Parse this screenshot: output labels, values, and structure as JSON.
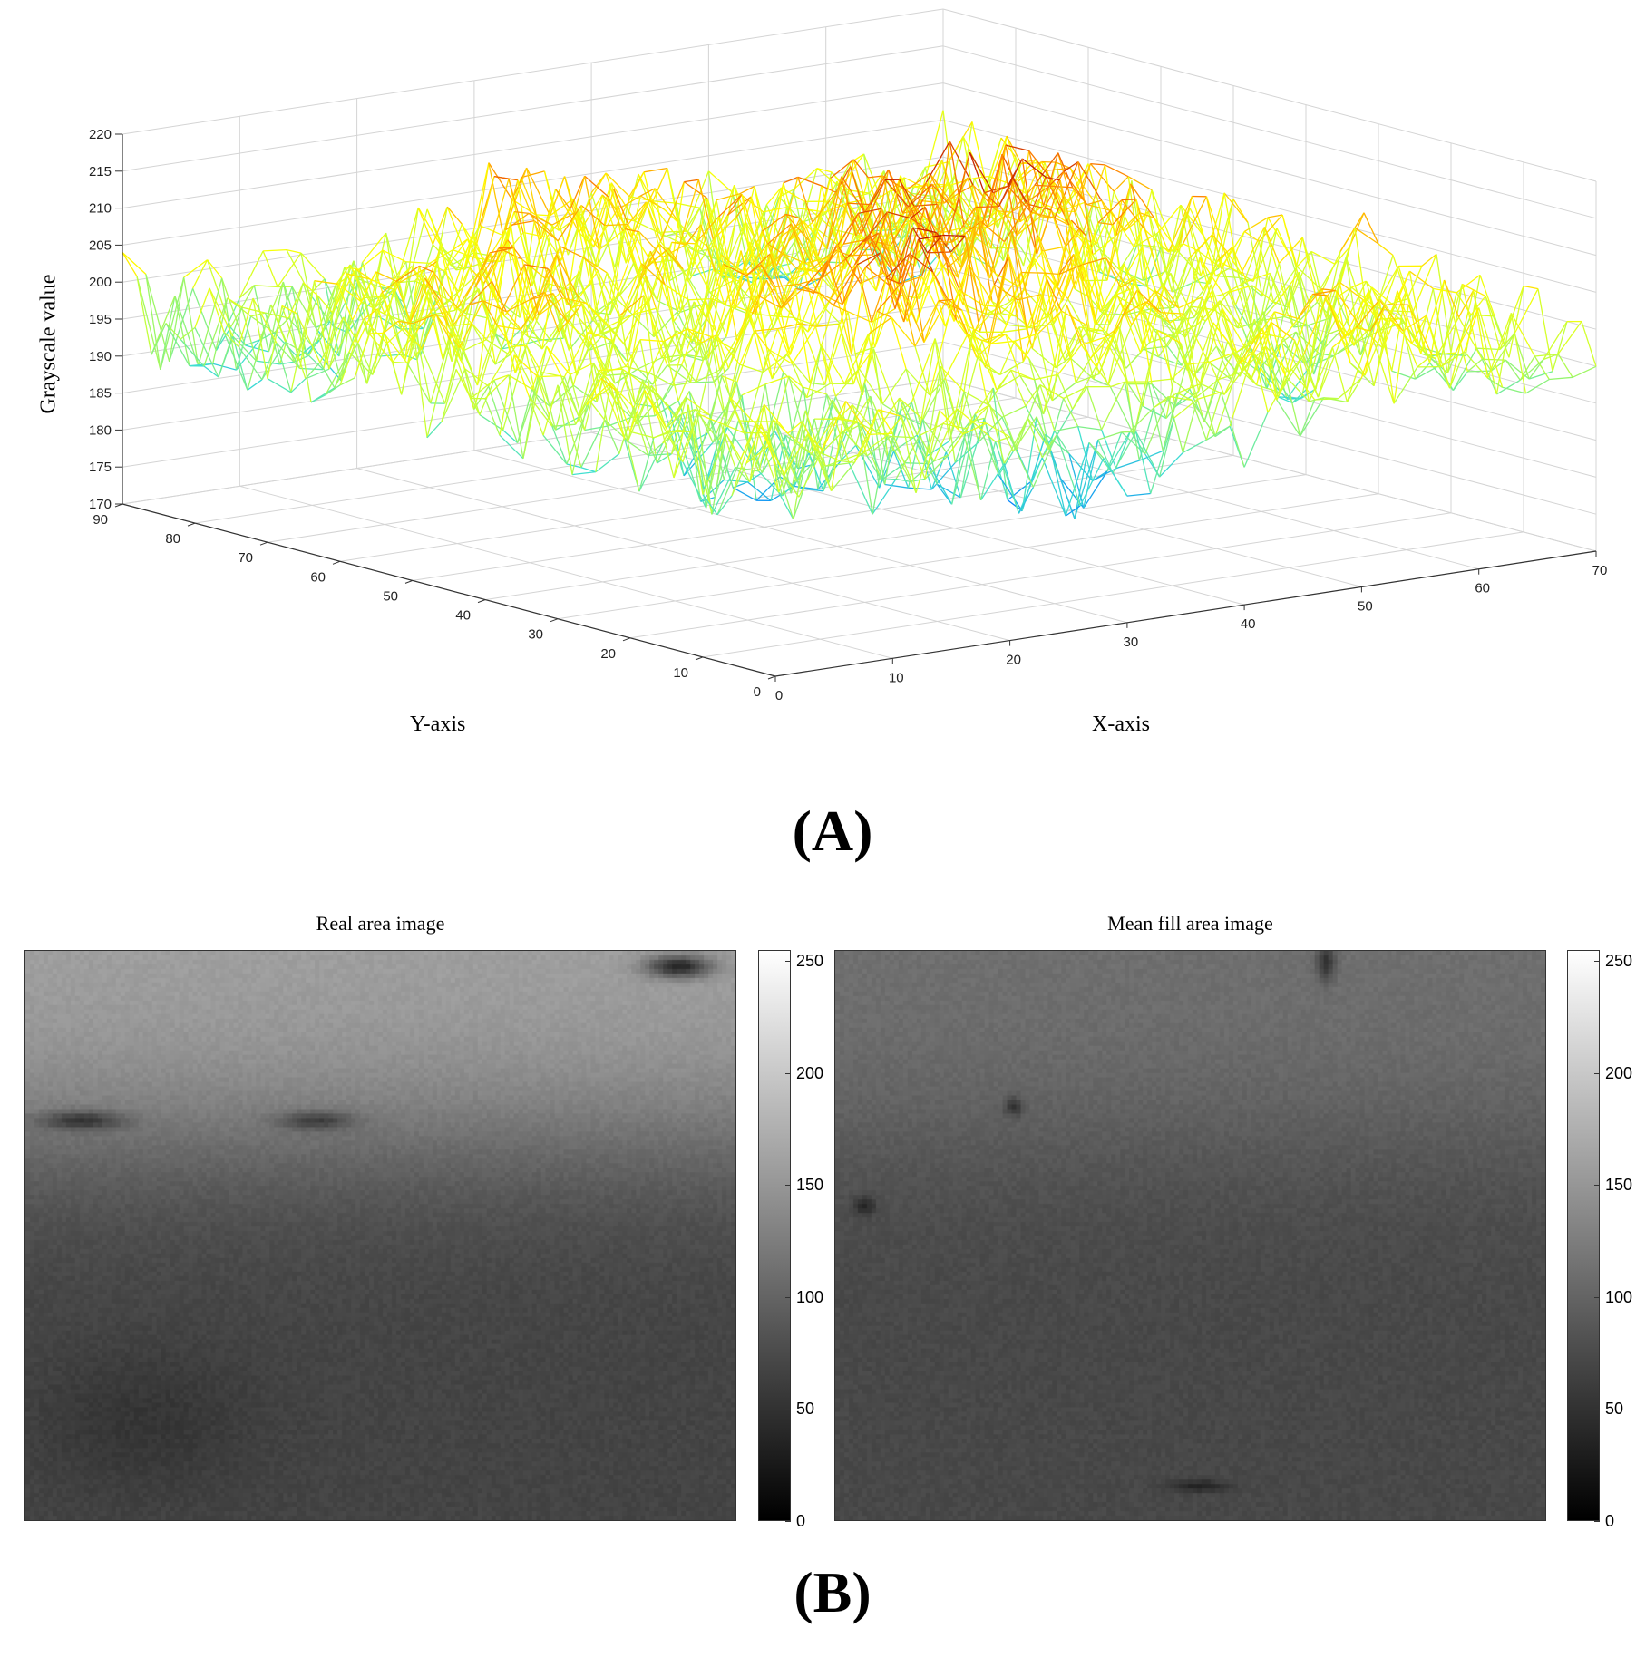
{
  "panels": {
    "a_label": "(A)",
    "b_label": "(B)"
  },
  "chart_data": [
    {
      "type": "surface",
      "xlabel": "X-axis",
      "ylabel": "Y-axis",
      "zlabel": "Grayscale value",
      "xlim": [
        0,
        70
      ],
      "ylim": [
        0,
        90
      ],
      "zlim": [
        170,
        220
      ],
      "x_ticks": [
        0,
        10,
        20,
        30,
        40,
        50,
        60,
        70
      ],
      "y_ticks": [
        0,
        10,
        20,
        30,
        40,
        50,
        60,
        70,
        80,
        90
      ],
      "z_ticks": [
        170,
        175,
        180,
        185,
        190,
        195,
        200,
        205,
        210,
        215,
        220
      ],
      "colormap": [
        "#00008f",
        "#0080ff",
        "#40e0d0",
        "#bfff40",
        "#ffff00",
        "#ff8000",
        "#b00000"
      ],
      "grid": true,
      "surface_summary": "noisy mesh: about 185-200 near high Y, peaks near 210-215 at mid X / mid Y, dips to about 180 at low Y / low X"
    },
    {
      "type": "heatmap",
      "title": "Real area image",
      "colormap": "gray",
      "clim": [
        0,
        255
      ],
      "colorbar_ticks": [
        0,
        50,
        100,
        150,
        200,
        250
      ],
      "summary": "upper band about 150-170, lower region about 55-75"
    },
    {
      "type": "heatmap",
      "title": "Mean fill area image",
      "colormap": "gray",
      "clim": [
        0,
        255
      ],
      "colorbar_ticks": [
        0,
        50,
        100,
        150,
        200,
        250
      ],
      "summary": "upper band about 105-115, lower region about 65-75"
    }
  ]
}
